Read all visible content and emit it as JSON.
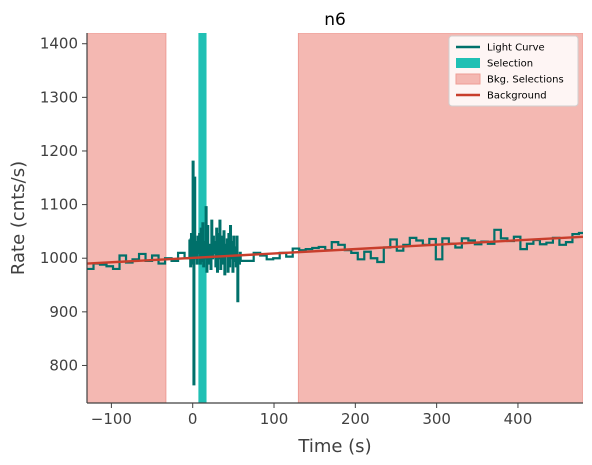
{
  "chart_data": {
    "type": "line",
    "title": "n6",
    "xlabel": "Time (s)",
    "ylabel": "Rate (cnts/s)",
    "xlim": [
      -130,
      480
    ],
    "ylim": [
      730,
      1420
    ],
    "xticks": [
      -100,
      0,
      100,
      200,
      300,
      400
    ],
    "yticks": [
      800,
      900,
      1000,
      1100,
      1200,
      1300,
      1400
    ],
    "grid": false,
    "legend_position": "top-right",
    "colors": {
      "light_curve": "#00706a",
      "selection": "#20c0b4",
      "bkg_selection": "#f4b8b2",
      "bkg_selection_edge": "#ee9d95",
      "background": "#c83e2c",
      "axis": "#404040"
    },
    "legend": [
      {
        "label": "Light Curve",
        "kind": "line",
        "color": "#00706a"
      },
      {
        "label": "Selection",
        "kind": "patch",
        "color": "#20c0b4"
      },
      {
        "label": "Bkg. Selections",
        "kind": "patch",
        "color": "#f4b8b2"
      },
      {
        "label": "Background",
        "kind": "line",
        "color": "#c83e2c"
      }
    ],
    "selection": {
      "x_start": 7,
      "x_end": 17
    },
    "bkg_selections": [
      {
        "x_start": -130,
        "x_end": -33
      },
      {
        "x_start": 130,
        "x_end": 480
      }
    ],
    "background_line": {
      "x": [
        -130,
        480
      ],
      "y": [
        990,
        1040
      ]
    },
    "light_curve": {
      "step": "post",
      "segments": [
        {
          "x": [
            -130,
            -122,
            -114,
            -106,
            -98,
            -90,
            -82,
            -74,
            -66,
            -58,
            -50,
            -42,
            -34,
            -26,
            -18,
            -10,
            -4
          ],
          "y": [
            980,
            990,
            988,
            985,
            980,
            1005,
            992,
            998,
            1008,
            995,
            1005,
            990,
            1000,
            995,
            1010,
            1000,
            1035
          ]
        },
        {
          "x": [
            -4,
            -3,
            -2,
            -1,
            0,
            1,
            2,
            3,
            4,
            5,
            6,
            7,
            8,
            9,
            10,
            11,
            12,
            13,
            14,
            15,
            16,
            17,
            18,
            19,
            20,
            21,
            22,
            23,
            24,
            25,
            26,
            27,
            28,
            29,
            30,
            31,
            32,
            33,
            34,
            35,
            36,
            37,
            38,
            39,
            40,
            41,
            42,
            43,
            44,
            45,
            46,
            47,
            48,
            49,
            50,
            51,
            52,
            53,
            54,
            55,
            56,
            57,
            58,
            59
          ],
          "y": [
            1035,
            985,
            1045,
            990,
            1180,
            765,
            1150,
            1000,
            1030,
            990,
            1040,
            1010,
            1045,
            990,
            1055,
            995,
            1065,
            985,
            1030,
            1000,
            1095,
            975,
            1060,
            990,
            1015,
            1025,
            980,
            1070,
            1000,
            1040,
            1010,
            1030,
            985,
            1055,
            975,
            1045,
            1000,
            1070,
            980,
            1020,
            1040,
            990,
            1050,
            970,
            1025,
            1005,
            1035,
            975,
            1045,
            985,
            1060,
            1000,
            1030,
            975,
            1040,
            995,
            1020,
            985,
            1040,
            920,
            1005,
            990,
            1010,
            995
          ]
        },
        {
          "x": [
            59,
            67,
            75,
            83,
            91,
            99,
            107,
            115,
            123,
            131,
            139,
            147,
            155,
            163,
            171,
            179,
            187,
            195,
            203,
            211,
            219,
            227,
            235,
            243,
            251,
            259,
            267,
            275,
            283,
            291,
            299,
            307,
            315,
            323,
            331,
            339,
            347,
            355,
            363,
            371,
            379,
            387,
            395,
            403,
            411,
            419,
            427,
            435,
            443,
            451,
            459,
            467,
            475,
            480
          ],
          "y": [
            995,
            995,
            1010,
            1005,
            998,
            1000,
            1010,
            1003,
            1018,
            1015,
            1017,
            1019,
            1021,
            1015,
            1030,
            1025,
            1015,
            1010,
            998,
            1012,
            1000,
            993,
            1020,
            1035,
            1014,
            1025,
            1038,
            1033,
            1025,
            1036,
            998,
            1037,
            1027,
            1020,
            1037,
            1033,
            1026,
            1031,
            1027,
            1053,
            1037,
            1032,
            1040,
            1017,
            1027,
            1034,
            1026,
            1029,
            1038,
            1025,
            1030,
            1045,
            1047,
            1047
          ]
        }
      ]
    }
  }
}
